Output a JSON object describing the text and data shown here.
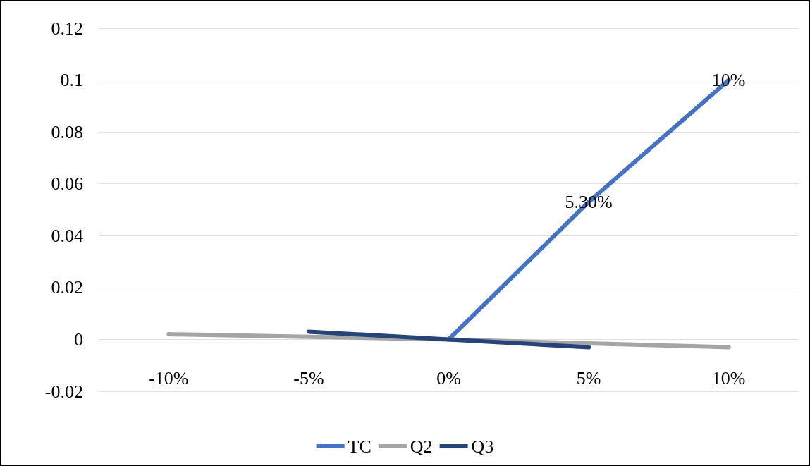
{
  "chart_data": {
    "type": "line",
    "categories": [
      "-10%",
      "-5%",
      "0%",
      "5%",
      "10%"
    ],
    "series": [
      {
        "name": "TC",
        "color": "#4472c4",
        "values": [
          null,
          null,
          0,
          0.053,
          0.1
        ],
        "value_labels": [
          null,
          null,
          null,
          "5.30%",
          "10%"
        ]
      },
      {
        "name": "Q2",
        "color": "#a5a5a5",
        "values": [
          0.002,
          0.001,
          0,
          -0.0015,
          -0.003
        ]
      },
      {
        "name": "Q3",
        "color": "#264478",
        "values": [
          null,
          0.003,
          0,
          -0.003,
          null
        ]
      }
    ],
    "ylim": [
      -0.02,
      0.12
    ],
    "yticks": [
      -0.02,
      0,
      0.02,
      0.04,
      0.06,
      0.08,
      0.1,
      0.12
    ],
    "grid": "y",
    "legend": "bottom",
    "marker": "none",
    "line_style": "solid"
  }
}
